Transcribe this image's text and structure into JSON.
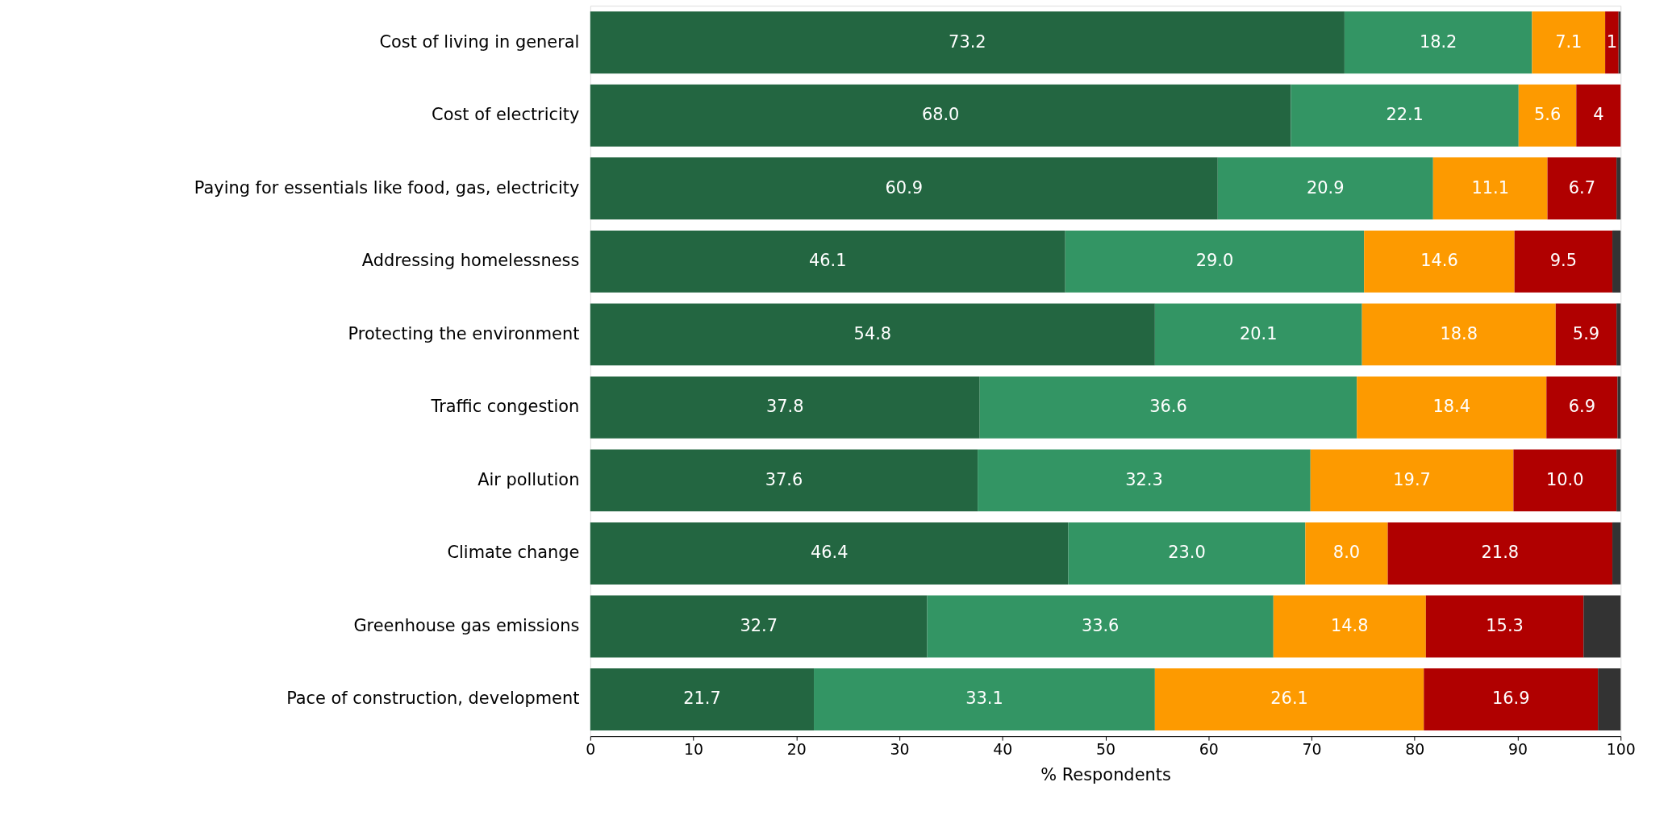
{
  "chart_data": {
    "type": "bar",
    "orientation": "horizontal",
    "stacked": true,
    "categories": [
      "Cost of living in general",
      "Cost of electricity",
      "Paying for essentials like food, gas, electricity",
      "Addressing homelessness",
      "Protecting the environment",
      "Traffic congestion",
      "Air pollution",
      "Climate change",
      "Greenhouse gas emissions",
      "Pace of construction, development"
    ],
    "series": [
      {
        "color": "#236641",
        "values": [
          73.2,
          68.0,
          60.9,
          46.1,
          54.8,
          37.8,
          37.6,
          46.4,
          32.7,
          21.7
        ],
        "value_labels": [
          "73.2",
          "68.0",
          "60.9",
          "46.1",
          "54.8",
          "37.8",
          "37.6",
          "46.4",
          "32.7",
          "21.7"
        ]
      },
      {
        "color": "#339564",
        "values": [
          18.2,
          22.1,
          20.9,
          29.0,
          20.1,
          36.6,
          32.3,
          23.0,
          33.6,
          33.1
        ],
        "value_labels": [
          "18.2",
          "22.1",
          "20.9",
          "29.0",
          "20.1",
          "36.6",
          "32.3",
          "23.0",
          "33.6",
          "33.1"
        ]
      },
      {
        "color": "#fd9a00",
        "values": [
          7.1,
          5.6,
          11.1,
          14.6,
          18.8,
          18.4,
          19.7,
          8.0,
          14.8,
          26.1
        ],
        "value_labels": [
          "7.1",
          "5.6",
          "11.1",
          "14.6",
          "18.8",
          "18.4",
          "19.7",
          "8.0",
          "14.8",
          "26.1"
        ]
      },
      {
        "color": "#b00000",
        "values": [
          1.3,
          4.3,
          6.7,
          9.5,
          5.9,
          6.9,
          10.0,
          21.8,
          15.3,
          16.9
        ],
        "value_labels": [
          "1",
          "4",
          "6.7",
          "9.5",
          "5.9",
          "6.9",
          "10.0",
          "21.8",
          "15.3",
          "16.9"
        ]
      },
      {
        "color": "#333333",
        "values": [
          0.2,
          0.0,
          0.4,
          0.8,
          0.4,
          0.3,
          0.4,
          0.8,
          3.6,
          2.2
        ]
      }
    ],
    "xlim": [
      0,
      100
    ],
    "xticks": [
      0,
      10,
      20,
      30,
      40,
      50,
      60,
      70,
      80,
      90,
      100
    ],
    "xlabel": "% Respondents",
    "grid": false
  }
}
